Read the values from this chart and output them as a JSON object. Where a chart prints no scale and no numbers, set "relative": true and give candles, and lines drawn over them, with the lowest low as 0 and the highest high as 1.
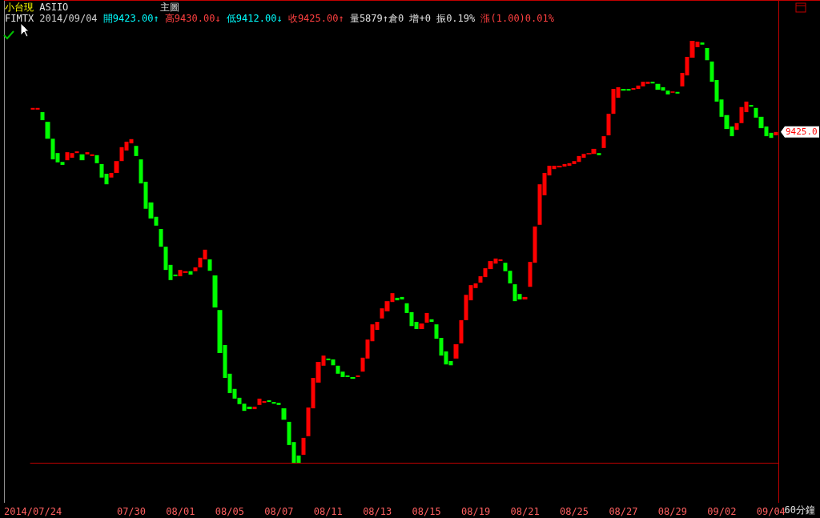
{
  "chart_data": {
    "type": "candlestick",
    "relative": true,
    "categories": [
      "2014/07/24",
      null,
      null,
      null,
      null,
      null,
      null,
      null,
      null,
      null,
      null,
      null,
      null,
      null,
      null,
      null,
      null,
      null,
      null,
      null,
      "07/30",
      null,
      null,
      null,
      null,
      null,
      null,
      null,
      null,
      null,
      "08/01",
      null,
      null,
      null,
      null,
      null,
      null,
      null,
      null,
      null,
      "08/05",
      null,
      null,
      null,
      null,
      null,
      null,
      null,
      null,
      null,
      "08/07",
      null,
      null,
      null,
      null,
      null,
      null,
      null,
      null,
      null,
      "08/11",
      null,
      null,
      null,
      null,
      null,
      null,
      null,
      null,
      null,
      "08/13",
      null,
      null,
      null,
      null,
      null,
      null,
      null,
      null,
      null,
      "08/15",
      null,
      null,
      null,
      null,
      null,
      null,
      null,
      null,
      null,
      "08/19",
      null,
      null,
      null,
      null,
      null,
      null,
      null,
      null,
      null,
      "08/21",
      null,
      null,
      null,
      null,
      null,
      null,
      null,
      null,
      null,
      "08/25",
      null,
      null,
      null,
      null,
      null,
      null,
      null,
      null,
      null,
      "08/27",
      null,
      null,
      null,
      null,
      null,
      null,
      null,
      null,
      null,
      "08/29",
      null,
      null,
      null,
      null,
      null,
      null,
      null,
      null,
      null,
      "09/02",
      null,
      null,
      null,
      null,
      null,
      null,
      null,
      null,
      null,
      "09/04",
      null
    ],
    "ohlc": [
      [
        0.837,
        0.841,
        0.837,
        0.841
      ],
      [
        0.837,
        0.841,
        0.837,
        0.841
      ],
      [
        0.831,
        0.831,
        0.812,
        0.812
      ],
      [
        0.808,
        0.808,
        0.768,
        0.768
      ],
      [
        0.768,
        0.768,
        0.719,
        0.719
      ],
      [
        0.734,
        0.734,
        0.712,
        0.712
      ],
      [
        0.713,
        0.713,
        0.706,
        0.706
      ],
      [
        0.717,
        0.736,
        0.717,
        0.736
      ],
      [
        0.723,
        0.734,
        0.723,
        0.734
      ],
      [
        0.734,
        0.738,
        0.734,
        0.738
      ],
      [
        0.731,
        0.731,
        0.717,
        0.717
      ],
      [
        0.731,
        0.736,
        0.731,
        0.736
      ],
      [
        0.727,
        0.731,
        0.727,
        0.731
      ],
      [
        0.729,
        0.729,
        0.71,
        0.71
      ],
      [
        0.708,
        0.708,
        0.676,
        0.676
      ],
      [
        0.685,
        0.685,
        0.66,
        0.66
      ],
      [
        0.676,
        0.687,
        0.676,
        0.687
      ],
      [
        0.687,
        0.715,
        0.687,
        0.715
      ],
      [
        0.715,
        0.748,
        0.715,
        0.748
      ],
      [
        0.74,
        0.761,
        0.74,
        0.761
      ],
      [
        0.757,
        0.767,
        0.757,
        0.767
      ],
      [
        0.751,
        0.751,
        0.727,
        0.727
      ],
      [
        0.719,
        0.719,
        0.662,
        0.662
      ],
      [
        0.666,
        0.666,
        0.602,
        0.602
      ],
      [
        0.617,
        0.617,
        0.579,
        0.579
      ],
      [
        0.583,
        0.583,
        0.562,
        0.562
      ],
      [
        0.554,
        0.554,
        0.512,
        0.512
      ],
      [
        0.512,
        0.512,
        0.457,
        0.457
      ],
      [
        0.469,
        0.469,
        0.433,
        0.433
      ],
      [
        0.446,
        0.446,
        0.442,
        0.442
      ],
      [
        0.442,
        0.457,
        0.442,
        0.457
      ],
      [
        0.45,
        0.454,
        0.45,
        0.454
      ],
      [
        0.454,
        0.454,
        0.446,
        0.446
      ],
      [
        0.454,
        0.463,
        0.454,
        0.463
      ],
      [
        0.463,
        0.486,
        0.463,
        0.486
      ],
      [
        0.482,
        0.505,
        0.482,
        0.505
      ],
      [
        0.482,
        0.482,
        0.455,
        0.455
      ],
      [
        0.444,
        0.444,
        0.368,
        0.368
      ],
      [
        0.362,
        0.362,
        0.26,
        0.26
      ],
      [
        0.279,
        0.279,
        0.201,
        0.201
      ],
      [
        0.211,
        0.211,
        0.165,
        0.165
      ],
      [
        0.175,
        0.175,
        0.152,
        0.152
      ],
      [
        0.154,
        0.154,
        0.139,
        0.139
      ],
      [
        0.14,
        0.14,
        0.123,
        0.123
      ],
      [
        0.133,
        0.133,
        0.127,
        0.127
      ],
      [
        0.127,
        0.133,
        0.127,
        0.133
      ],
      [
        0.137,
        0.152,
        0.137,
        0.152
      ],
      [
        0.142,
        0.146,
        0.142,
        0.146
      ],
      [
        0.148,
        0.148,
        0.144,
        0.144
      ],
      [
        0.144,
        0.144,
        0.14,
        0.14
      ],
      [
        0.142,
        0.142,
        0.137,
        0.137
      ],
      [
        0.129,
        0.129,
        0.102,
        0.102
      ],
      [
        0.097,
        0.097,
        0.042,
        0.042
      ],
      [
        0.049,
        0.049,
        0,
        0
      ],
      [
        0.017,
        0.017,
        0,
        0
      ],
      [
        0.019,
        0.059,
        0.019,
        0.059
      ],
      [
        0.063,
        0.131,
        0.063,
        0.131
      ],
      [
        0.129,
        0.201,
        0.129,
        0.201
      ],
      [
        0.19,
        0.239,
        0.19,
        0.239
      ],
      [
        0.23,
        0.254,
        0.23,
        0.254
      ],
      [
        0.247,
        0.247,
        0.243,
        0.243
      ],
      [
        0.245,
        0.245,
        0.231,
        0.231
      ],
      [
        0.23,
        0.23,
        0.211,
        0.211
      ],
      [
        0.216,
        0.216,
        0.203,
        0.203
      ],
      [
        0.207,
        0.207,
        0.203,
        0.203
      ],
      [
        0.203,
        0.203,
        0.199,
        0.199
      ],
      [
        0.203,
        0.207,
        0.203,
        0.207
      ],
      [
        0.216,
        0.249,
        0.216,
        0.249
      ],
      [
        0.247,
        0.292,
        0.247,
        0.292
      ],
      [
        0.288,
        0.328,
        0.288,
        0.328
      ],
      [
        0.315,
        0.334,
        0.315,
        0.334
      ],
      [
        0.342,
        0.366,
        0.342,
        0.366
      ],
      [
        0.359,
        0.383,
        0.359,
        0.383
      ],
      [
        0.381,
        0.402,
        0.381,
        0.402
      ],
      [
        0.391,
        0.391,
        0.385,
        0.385
      ],
      [
        0.393,
        0.393,
        0.387,
        0.387
      ],
      [
        0.378,
        0.378,
        0.355,
        0.355
      ],
      [
        0.357,
        0.357,
        0.324,
        0.324
      ],
      [
        0.334,
        0.334,
        0.317,
        0.317
      ],
      [
        0.317,
        0.33,
        0.317,
        0.33
      ],
      [
        0.332,
        0.355,
        0.332,
        0.355
      ],
      [
        0.34,
        0.34,
        0.334,
        0.334
      ],
      [
        0.328,
        0.328,
        0.294,
        0.294
      ],
      [
        0.296,
        0.296,
        0.254,
        0.254
      ],
      [
        0.264,
        0.264,
        0.233,
        0.233
      ],
      [
        0.241,
        0.241,
        0.231,
        0.231
      ],
      [
        0.247,
        0.281,
        0.247,
        0.281
      ],
      [
        0.283,
        0.338,
        0.283,
        0.338
      ],
      [
        0.338,
        0.398,
        0.338,
        0.398
      ],
      [
        0.385,
        0.421,
        0.385,
        0.421
      ],
      [
        0.414,
        0.425,
        0.414,
        0.425
      ],
      [
        0.427,
        0.442,
        0.427,
        0.442
      ],
      [
        0.44,
        0.461,
        0.44,
        0.461
      ],
      [
        0.459,
        0.478,
        0.459,
        0.478
      ],
      [
        0.472,
        0.484,
        0.472,
        0.484
      ],
      [
        0.478,
        0.482,
        0.478,
        0.482
      ],
      [
        0.474,
        0.474,
        0.454,
        0.454
      ],
      [
        0.455,
        0.455,
        0.425,
        0.425
      ],
      [
        0.423,
        0.423,
        0.383,
        0.383
      ],
      [
        0.4,
        0.4,
        0.387,
        0.387
      ],
      [
        0.387,
        0.393,
        0.387,
        0.393
      ],
      [
        0.417,
        0.476,
        0.417,
        0.476
      ],
      [
        0.474,
        0.56,
        0.474,
        0.56
      ],
      [
        0.564,
        0.66,
        0.564,
        0.66
      ],
      [
        0.634,
        0.687,
        0.634,
        0.687
      ],
      [
        0.681,
        0.704,
        0.681,
        0.704
      ],
      [
        0.696,
        0.704,
        0.696,
        0.704
      ],
      [
        0.7,
        0.704,
        0.7,
        0.704
      ],
      [
        0.702,
        0.708,
        0.702,
        0.708
      ],
      [
        0.704,
        0.71,
        0.704,
        0.71
      ],
      [
        0.708,
        0.715,
        0.708,
        0.715
      ],
      [
        0.713,
        0.727,
        0.713,
        0.727
      ],
      [
        0.723,
        0.732,
        0.723,
        0.732
      ],
      [
        0.731,
        0.734,
        0.731,
        0.734
      ],
      [
        0.732,
        0.744,
        0.732,
        0.744
      ],
      [
        0.734,
        0.734,
        0.729,
        0.729
      ],
      [
        0.746,
        0.774,
        0.746,
        0.774
      ],
      [
        0.776,
        0.827,
        0.776,
        0.827
      ],
      [
        0.827,
        0.886,
        0.827,
        0.886
      ],
      [
        0.865,
        0.89,
        0.865,
        0.89
      ],
      [
        0.886,
        0.886,
        0.882,
        0.882
      ],
      [
        0.886,
        0.886,
        0.882,
        0.882
      ],
      [
        0.884,
        0.888,
        0.884,
        0.888
      ],
      [
        0.886,
        0.894,
        0.886,
        0.894
      ],
      [
        0.892,
        0.903,
        0.892,
        0.903
      ],
      [
        0.898,
        0.903,
        0.898,
        0.903
      ],
      [
        0.903,
        0.903,
        0.899,
        0.899
      ],
      [
        0.898,
        0.898,
        0.884,
        0.884
      ],
      [
        0.89,
        0.89,
        0.882,
        0.882
      ],
      [
        0.882,
        0.882,
        0.873,
        0.873
      ],
      [
        0.877,
        0.88,
        0.877,
        0.88
      ],
      [
        0.879,
        0.879,
        0.875,
        0.875
      ],
      [
        0.892,
        0.924,
        0.892,
        0.924
      ],
      [
        0.918,
        0.962,
        0.918,
        0.962
      ],
      [
        0.96,
        1,
        0.96,
        1
      ],
      [
        0.985,
        0.998,
        0.985,
        0.998
      ],
      [
        0.996,
        0.996,
        0.991,
        0.991
      ],
      [
        0.983,
        0.983,
        0.954,
        0.954
      ],
      [
        0.951,
        0.951,
        0.903,
        0.903
      ],
      [
        0.907,
        0.907,
        0.856,
        0.856
      ],
      [
        0.861,
        0.861,
        0.82,
        0.82
      ],
      [
        0.824,
        0.824,
        0.791,
        0.791
      ],
      [
        0.797,
        0.797,
        0.774,
        0.774
      ],
      [
        0.789,
        0.805,
        0.789,
        0.805
      ],
      [
        0.805,
        0.843,
        0.805,
        0.843
      ],
      [
        0.831,
        0.856,
        0.831,
        0.856
      ],
      [
        0.848,
        0.848,
        0.844,
        0.844
      ],
      [
        0.841,
        0.841,
        0.818,
        0.818
      ],
      [
        0.82,
        0.82,
        0.793,
        0.793
      ],
      [
        0.797,
        0.797,
        0.774,
        0.774
      ],
      [
        0.782,
        0.782,
        0.77,
        0.77
      ],
      [
        0.776,
        0.784,
        0.776,
        0.784
      ]
    ],
    "annotations": [
      "小台現",
      "ASIIO",
      "主圖",
      "FIMTX",
      "2014/09/04",
      "開9423.00↑",
      "高9430.00↓",
      "低9412.00↓",
      "收9425.00↑",
      "量5879↑倉0 增+0 振0.19%",
      "漲(1.00)0.01%",
      "60分鐘",
      "9425.0"
    ]
  }
}
